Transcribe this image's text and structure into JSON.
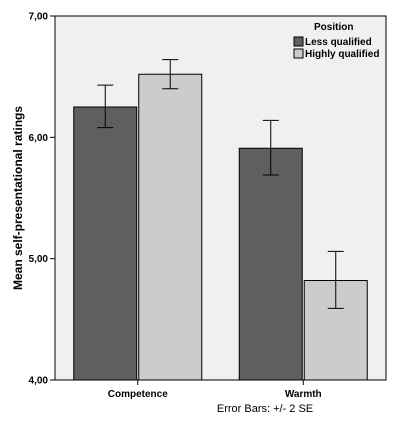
{
  "chart_data": {
    "type": "bar",
    "categories": [
      "Competence",
      "Warmth"
    ],
    "series": [
      {
        "name": "Less qualified",
        "color": "#5f5f5f",
        "values": [
          6.25,
          5.91
        ],
        "error_low": [
          6.08,
          5.69
        ],
        "error_high": [
          6.43,
          6.14
        ]
      },
      {
        "name": "Highly qualified",
        "color": "#cccccc",
        "values": [
          6.52,
          4.82
        ],
        "error_low": [
          6.4,
          4.59
        ],
        "error_high": [
          6.64,
          5.06
        ]
      }
    ],
    "ylabel": "Mean self-presentational ratings",
    "ylim": [
      4.0,
      7.0
    ],
    "yticks": [
      4.0,
      5.0,
      6.0,
      7.0
    ],
    "ytick_labels": [
      "4,00",
      "5,00",
      "6,00",
      "7,00"
    ],
    "legend_title": "Position",
    "legend_position": "top-right",
    "footnote": "Error Bars: +/- 2 SE",
    "plot_background": "#f0f0f0",
    "grid": false
  }
}
